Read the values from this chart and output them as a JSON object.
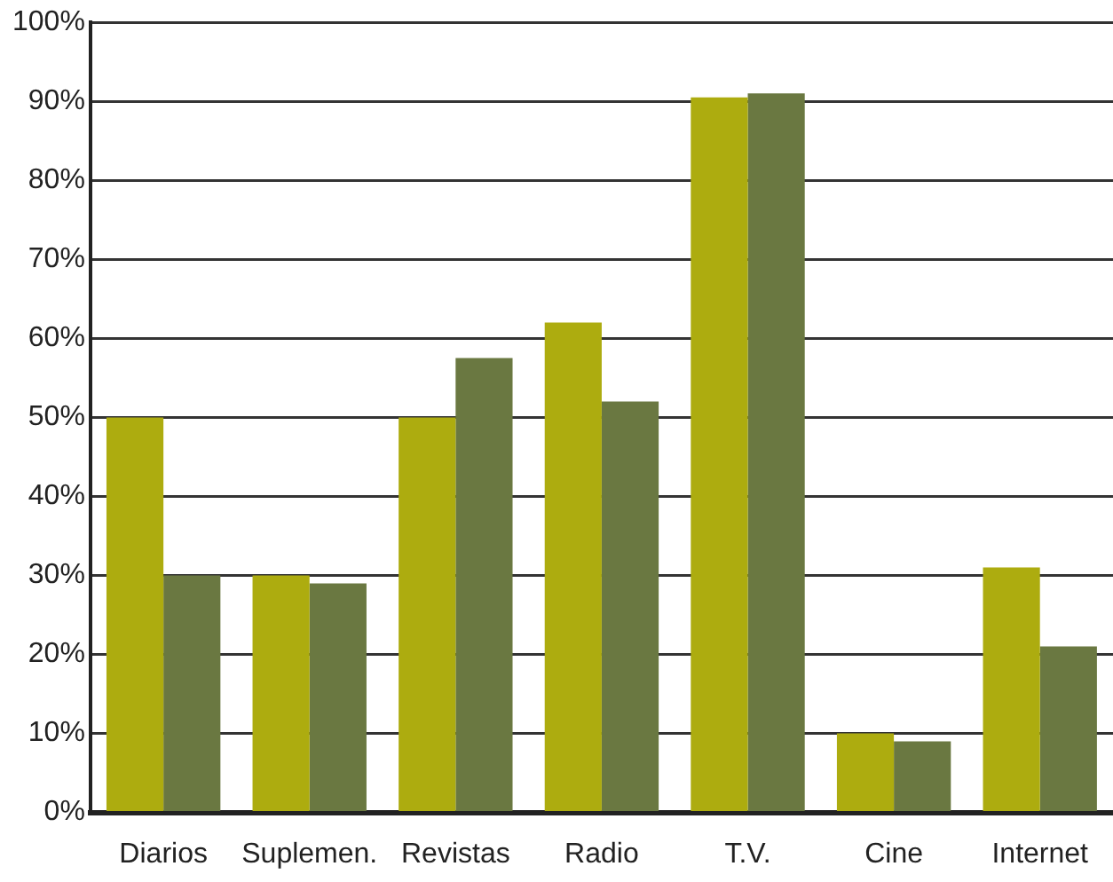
{
  "chart_data": {
    "type": "bar",
    "categories": [
      "Diarios",
      "Suplemen.",
      "Revistas",
      "Radio",
      "T.V.",
      "Cine",
      "Internet"
    ],
    "series": [
      {
        "color": "#adac0f",
        "values": [
          50,
          30,
          50,
          62,
          90.5,
          10,
          31
        ]
      },
      {
        "color": "#6a7841",
        "values": [
          30,
          29,
          57.5,
          52,
          91,
          9,
          21
        ]
      }
    ],
    "ylim": [
      0,
      100
    ],
    "yticks": [
      {
        "value": 0,
        "label": "0%"
      },
      {
        "value": 10,
        "label": "10%"
      },
      {
        "value": 20,
        "label": "20%"
      },
      {
        "value": 30,
        "label": "30%"
      },
      {
        "value": 40,
        "label": "40%"
      },
      {
        "value": 50,
        "label": "50%"
      },
      {
        "value": 60,
        "label": "60%"
      },
      {
        "value": 70,
        "label": "70%"
      },
      {
        "value": 80,
        "label": "80%"
      },
      {
        "value": 90,
        "label": "90%"
      },
      {
        "value": 100,
        "label": "100%"
      }
    ],
    "grid": "y",
    "legend": false
  }
}
